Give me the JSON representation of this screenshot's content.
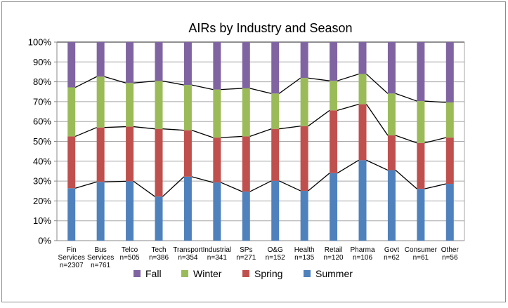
{
  "chart_data": {
    "type": "bar",
    "stacked": "percent",
    "title": "AIRs by Industry and Season",
    "xlabel": "",
    "ylabel": "",
    "ylim": [
      0,
      100
    ],
    "yticks": [
      "0%",
      "10%",
      "20%",
      "30%",
      "40%",
      "50%",
      "60%",
      "70%",
      "80%",
      "90%",
      "100%"
    ],
    "grid": true,
    "legend_position": "bottom",
    "categories": [
      {
        "name": "Fin Services",
        "n": "n=2307"
      },
      {
        "name": "Bus Services",
        "n": "n=761"
      },
      {
        "name": "Telco",
        "n": "n=505"
      },
      {
        "name": "Tech",
        "n": "n=386"
      },
      {
        "name": "Transport",
        "n": "n=354"
      },
      {
        "name": "Industrial",
        "n": "n=341"
      },
      {
        "name": "SPs",
        "n": "n=271"
      },
      {
        "name": "O&G",
        "n": "n=152"
      },
      {
        "name": "Health",
        "n": "n=135"
      },
      {
        "name": "Retail",
        "n": "n=120"
      },
      {
        "name": "Pharma",
        "n": "n=106"
      },
      {
        "name": "Govt",
        "n": "n=62"
      },
      {
        "name": "Consumer",
        "n": "n=61"
      },
      {
        "name": "Other",
        "n": "n=56"
      }
    ],
    "series": [
      {
        "name": "Summer",
        "color": "#4F81BD",
        "values": [
          26.4,
          29.6,
          29.9,
          22.2,
          32.2,
          29.3,
          24.7,
          30.1,
          25.1,
          34.0,
          40.5,
          35.5,
          26.1,
          28.6
        ]
      },
      {
        "name": "Spring",
        "color": "#C0504D",
        "values": [
          26.1,
          27.4,
          27.5,
          34.1,
          23.4,
          22.6,
          27.8,
          26.2,
          32.6,
          31.6,
          28.2,
          17.5,
          23.1,
          23.3
        ]
      },
      {
        "name": "Winter",
        "color": "#9BBB59",
        "values": [
          24.7,
          25.6,
          22.0,
          24.1,
          22.8,
          24.2,
          24.2,
          17.8,
          24.2,
          14.9,
          15.2,
          21.1,
          21.1,
          17.7
        ]
      },
      {
        "name": "Fall",
        "color": "#8064A2",
        "values": [
          22.8,
          17.4,
          20.6,
          19.6,
          21.6,
          23.9,
          23.3,
          25.9,
          18.1,
          19.5,
          16.1,
          25.9,
          29.7,
          30.4
        ]
      }
    ],
    "legend_order": [
      "Fall",
      "Winter",
      "Spring",
      "Summer"
    ]
  }
}
